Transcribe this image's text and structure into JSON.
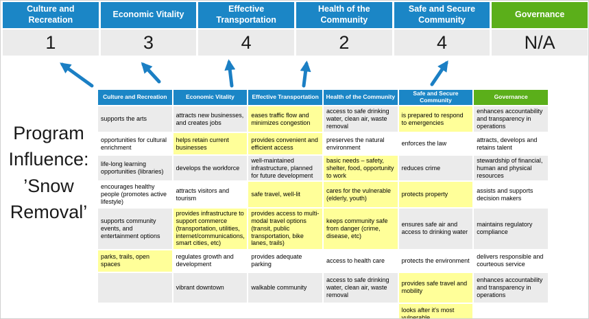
{
  "program_label": "Program\nInfluence:\n’Snow\nRemoval’",
  "colors": {
    "category_blue": "#1B86C6",
    "governance_green": "#5BAF1A",
    "score_band_gray": "#EBEBEB",
    "highlight_yellow": "#FFFF99",
    "arrow_blue": "#1B7FC4"
  },
  "top": {
    "categories": [
      {
        "label": "Culture and Recreation",
        "score": "1"
      },
      {
        "label": "Economic Vitality",
        "score": "3"
      },
      {
        "label": "Effective Transportation",
        "score": "4"
      },
      {
        "label": "Health of the Community",
        "score": "2"
      },
      {
        "label": "Safe and Secure Community",
        "score": "4"
      },
      {
        "label": "Governance",
        "score": "N/A"
      }
    ]
  },
  "table": {
    "columns": [
      "Culture and Recreation",
      "Economic Vitality",
      "Effective Transportation",
      "Health of the Community",
      "Safe and Secure Community",
      "Governance"
    ],
    "rows": [
      {
        "cells": [
          {
            "t": "supports the arts",
            "h": false
          },
          {
            "t": "attracts new businesses, and creates jobs",
            "h": false
          },
          {
            "t": "eases traffic flow and minimizes congestion",
            "h": true
          },
          {
            "t": "access to safe drinking water, clean air, waste removal",
            "h": false
          },
          {
            "t": "is prepared to respond to emergencies",
            "h": true
          },
          {
            "t": "enhances accountability and transparency in operations",
            "h": false
          }
        ]
      },
      {
        "cells": [
          {
            "t": "opportunities for cultural enrichment",
            "h": false
          },
          {
            "t": "helps retain current businesses",
            "h": true
          },
          {
            "t": "provides convenient and efficient access",
            "h": true
          },
          {
            "t": "preserves the natural environment",
            "h": false
          },
          {
            "t": "enforces the law",
            "h": false
          },
          {
            "t": "attracts, develops and retains talent",
            "h": false
          }
        ]
      },
      {
        "cells": [
          {
            "t": "life-long learning opportunities (libraries)",
            "h": false
          },
          {
            "t": "develops the workforce",
            "h": false
          },
          {
            "t": "well-maintained infrastructure, planned for future development",
            "h": false
          },
          {
            "t": "basic needs – safety, shelter, food, opportunity to work",
            "h": true
          },
          {
            "t": "reduces crime",
            "h": false
          },
          {
            "t": "stewardship of financial, human and physical resources",
            "h": false
          }
        ]
      },
      {
        "cells": [
          {
            "t": "encourages healthy people (promotes active lifestyle)",
            "h": false
          },
          {
            "t": "attracts visitors and tourism",
            "h": false
          },
          {
            "t": "safe travel, well-lit",
            "h": true
          },
          {
            "t": "cares for the vulnerable (elderly, youth)",
            "h": true
          },
          {
            "t": "protects property",
            "h": true
          },
          {
            "t": "assists and supports decision makers",
            "h": false
          }
        ]
      },
      {
        "cells": [
          {
            "t": "supports community events, and entertainment options",
            "h": false
          },
          {
            "t": "provides infrastructure to support commerce (transportation, utilities, internet/communications, smart cities, etc)",
            "h": true
          },
          {
            "t": "provides access to multi-modal travel options (transit, public transportation, bike lanes, trails)",
            "h": true
          },
          {
            "t": "keeps community safe from danger (crime, disease, etc)",
            "h": true
          },
          {
            "t": "ensures safe air and access to drinking water",
            "h": false
          },
          {
            "t": "maintains regulatory compliance",
            "h": false
          }
        ]
      },
      {
        "cells": [
          {
            "t": "parks, trails, open spaces",
            "h": true
          },
          {
            "t": "regulates growth and development",
            "h": false
          },
          {
            "t": "provides adequate parking",
            "h": false
          },
          {
            "t": "access to health care",
            "h": false
          },
          {
            "t": "protects the environment",
            "h": false
          },
          {
            "t": "delivers responsible and courteous service",
            "h": false
          }
        ]
      },
      {
        "cells": [
          {
            "t": "",
            "h": false
          },
          {
            "t": "vibrant downtown",
            "h": false
          },
          {
            "t": "walkable community",
            "h": false
          },
          {
            "t": "access to safe drinking water, clean air, waste removal",
            "h": false
          },
          {
            "t": "provides safe travel and mobility",
            "h": true
          },
          {
            "t": "enhances accountability and transparency in operations",
            "h": false
          }
        ]
      },
      {
        "cells": [
          {
            "t": "",
            "h": false
          },
          {
            "t": "",
            "h": false
          },
          {
            "t": "",
            "h": false
          },
          {
            "t": "",
            "h": false
          },
          {
            "t": "looks after it's most vulnerable",
            "h": true
          },
          {
            "t": "",
            "h": false
          }
        ]
      }
    ]
  }
}
